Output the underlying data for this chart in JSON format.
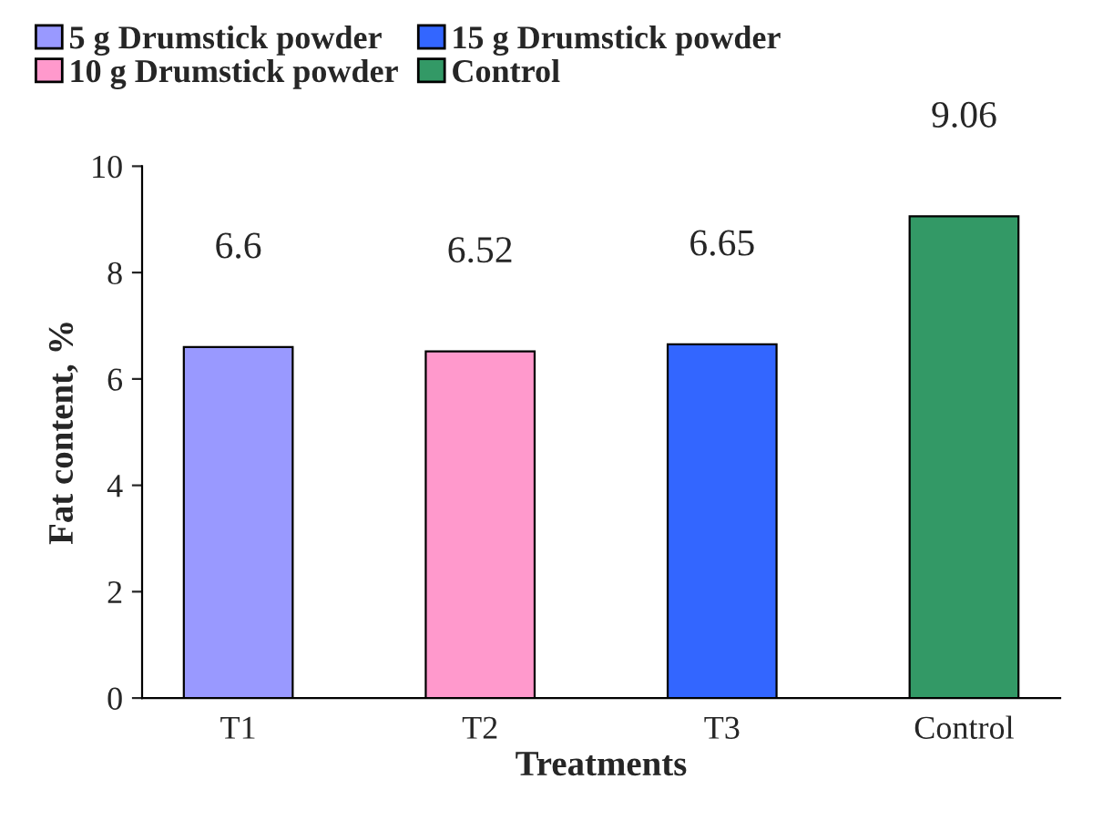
{
  "chart_data": {
    "type": "bar",
    "xlabel": "Treatments",
    "ylabel": "Fat content, %",
    "categories": [
      "T1",
      "T2",
      "T3",
      "Control"
    ],
    "series": [
      {
        "name": "5 g Drumstick powder",
        "color": "#9999ff",
        "values": [
          6.6,
          null,
          null,
          null
        ]
      },
      {
        "name": "10 g Drumstick powder",
        "color": "#ff99cc",
        "values": [
          null,
          6.52,
          null,
          null
        ]
      },
      {
        "name": "15 g Drumstick powder",
        "color": "#3366ff",
        "values": [
          null,
          null,
          6.65,
          null
        ]
      },
      {
        "name": "Control",
        "color": "#339966",
        "values": [
          null,
          null,
          null,
          9.06
        ]
      }
    ],
    "ylim": [
      0,
      10
    ],
    "yticks": [
      0,
      2,
      4,
      6,
      8,
      10
    ],
    "data_labels": true,
    "legend": "top",
    "grid": false
  }
}
